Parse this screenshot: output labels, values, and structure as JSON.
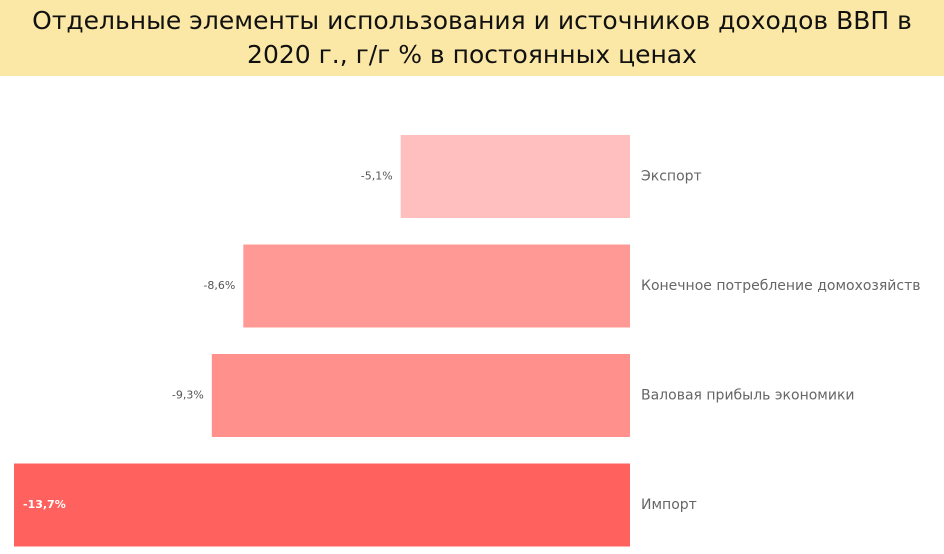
{
  "title": "Отдельные элементы использования и источников доходов ВВП в 2020 г., г/г % в постоянных ценах",
  "colors": {
    "title_background": "#fbe8a6",
    "bar_light": "#ffbfbf",
    "bar_medium": "#ff9996",
    "bar_strong": "#ff908c",
    "bar_dark": "#ff625e"
  },
  "chart_data": {
    "type": "bar",
    "orientation": "horizontal",
    "title": "Отдельные элементы использования и источников доходов ВВП в 2020 г., г/г % в постоянных ценах",
    "xlabel": "",
    "ylabel": "",
    "grid": false,
    "legend": "none",
    "categories": [
      "Экспорт",
      "Конечное потребление домохозяйств",
      "Валовая прибыль экономики",
      "Импорт"
    ],
    "values": [
      -5.1,
      -8.6,
      -9.3,
      -13.7
    ],
    "data_labels": [
      "-5,1%",
      "-8,6%",
      "-9,3%",
      "-13,7%"
    ],
    "bar_colors": [
      "#ffbfbf",
      "#ff9996",
      "#ff908c",
      "#ff625e"
    ],
    "xlim": [
      -13.7,
      0
    ]
  }
}
